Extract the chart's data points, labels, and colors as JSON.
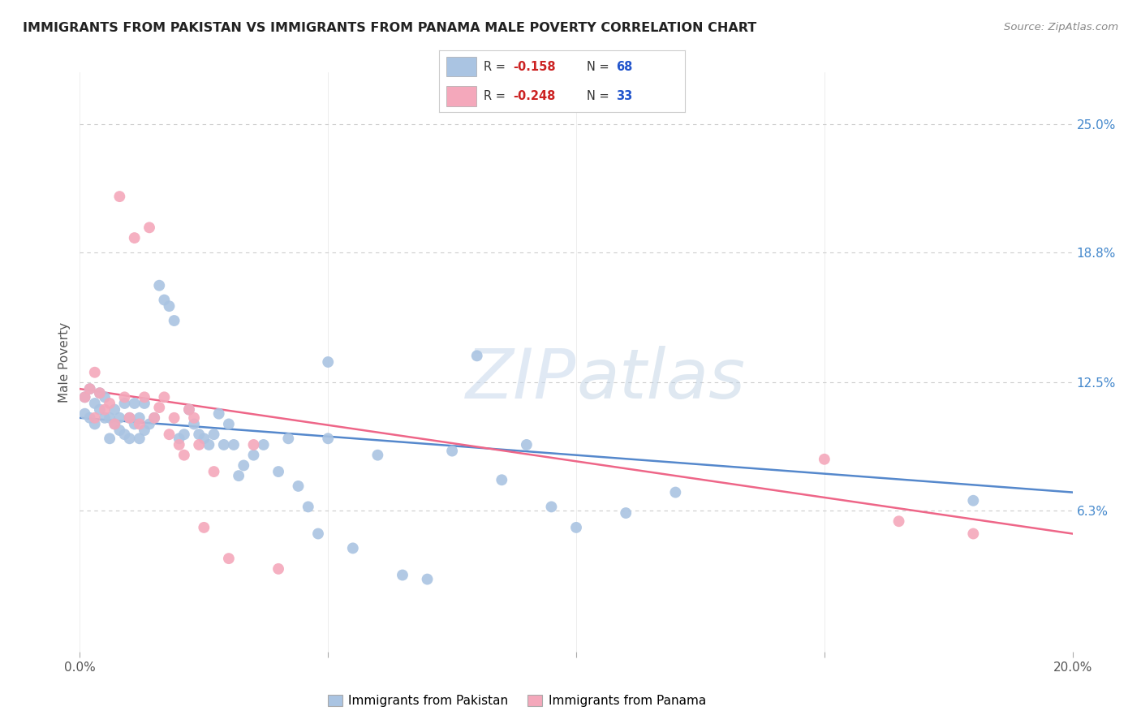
{
  "title": "IMMIGRANTS FROM PAKISTAN VS IMMIGRANTS FROM PANAMA MALE POVERTY CORRELATION CHART",
  "source": "Source: ZipAtlas.com",
  "ylabel": "Male Poverty",
  "ytick_labels": [
    "25.0%",
    "18.8%",
    "12.5%",
    "6.3%"
  ],
  "ytick_values": [
    0.25,
    0.188,
    0.125,
    0.063
  ],
  "xlim": [
    0.0,
    0.2
  ],
  "ylim": [
    -0.005,
    0.275
  ],
  "legend1_r": "-0.158",
  "legend1_n": "68",
  "legend2_r": "-0.248",
  "legend2_n": "33",
  "legend1_label": "Immigrants from Pakistan",
  "legend2_label": "Immigrants from Panama",
  "color_pakistan": "#aac4e2",
  "color_panama": "#f4a8bb",
  "line_color_pakistan": "#5588cc",
  "line_color_panama": "#ee6688",
  "watermark_zip": "ZIP",
  "watermark_atlas": "atlas",
  "background_color": "#ffffff",
  "grid_color": "#cccccc",
  "pakistan_x": [
    0.001,
    0.001,
    0.002,
    0.002,
    0.003,
    0.003,
    0.004,
    0.004,
    0.005,
    0.005,
    0.006,
    0.006,
    0.007,
    0.007,
    0.008,
    0.008,
    0.009,
    0.009,
    0.01,
    0.01,
    0.011,
    0.011,
    0.012,
    0.012,
    0.013,
    0.013,
    0.014,
    0.015,
    0.016,
    0.017,
    0.018,
    0.019,
    0.02,
    0.021,
    0.022,
    0.023,
    0.024,
    0.025,
    0.026,
    0.027,
    0.028,
    0.029,
    0.03,
    0.031,
    0.032,
    0.033,
    0.035,
    0.037,
    0.04,
    0.042,
    0.044,
    0.046,
    0.048,
    0.05,
    0.055,
    0.06,
    0.065,
    0.07,
    0.075,
    0.08,
    0.085,
    0.09,
    0.095,
    0.1,
    0.11,
    0.12,
    0.05,
    0.18
  ],
  "pakistan_y": [
    0.118,
    0.11,
    0.108,
    0.122,
    0.115,
    0.105,
    0.112,
    0.12,
    0.108,
    0.118,
    0.098,
    0.108,
    0.105,
    0.112,
    0.102,
    0.108,
    0.1,
    0.115,
    0.098,
    0.108,
    0.115,
    0.105,
    0.108,
    0.098,
    0.102,
    0.115,
    0.105,
    0.108,
    0.172,
    0.165,
    0.162,
    0.155,
    0.098,
    0.1,
    0.112,
    0.105,
    0.1,
    0.098,
    0.095,
    0.1,
    0.11,
    0.095,
    0.105,
    0.095,
    0.08,
    0.085,
    0.09,
    0.095,
    0.082,
    0.098,
    0.075,
    0.065,
    0.052,
    0.098,
    0.045,
    0.09,
    0.032,
    0.03,
    0.092,
    0.138,
    0.078,
    0.095,
    0.065,
    0.055,
    0.062,
    0.072,
    0.135,
    0.068
  ],
  "panama_x": [
    0.001,
    0.002,
    0.003,
    0.003,
    0.004,
    0.005,
    0.006,
    0.007,
    0.008,
    0.009,
    0.01,
    0.011,
    0.012,
    0.013,
    0.014,
    0.015,
    0.016,
    0.017,
    0.018,
    0.019,
    0.02,
    0.021,
    0.022,
    0.023,
    0.024,
    0.025,
    0.027,
    0.03,
    0.035,
    0.04,
    0.15,
    0.165,
    0.18
  ],
  "panama_y": [
    0.118,
    0.122,
    0.108,
    0.13,
    0.12,
    0.112,
    0.115,
    0.105,
    0.215,
    0.118,
    0.108,
    0.195,
    0.105,
    0.118,
    0.2,
    0.108,
    0.113,
    0.118,
    0.1,
    0.108,
    0.095,
    0.09,
    0.112,
    0.108,
    0.095,
    0.055,
    0.082,
    0.04,
    0.095,
    0.035,
    0.088,
    0.058,
    0.052
  ],
  "line_pak_x0": 0.0,
  "line_pak_x1": 0.2,
  "line_pak_y0": 0.108,
  "line_pak_y1": 0.072,
  "line_pan_x0": 0.0,
  "line_pan_x1": 0.2,
  "line_pan_y0": 0.122,
  "line_pan_y1": 0.052
}
